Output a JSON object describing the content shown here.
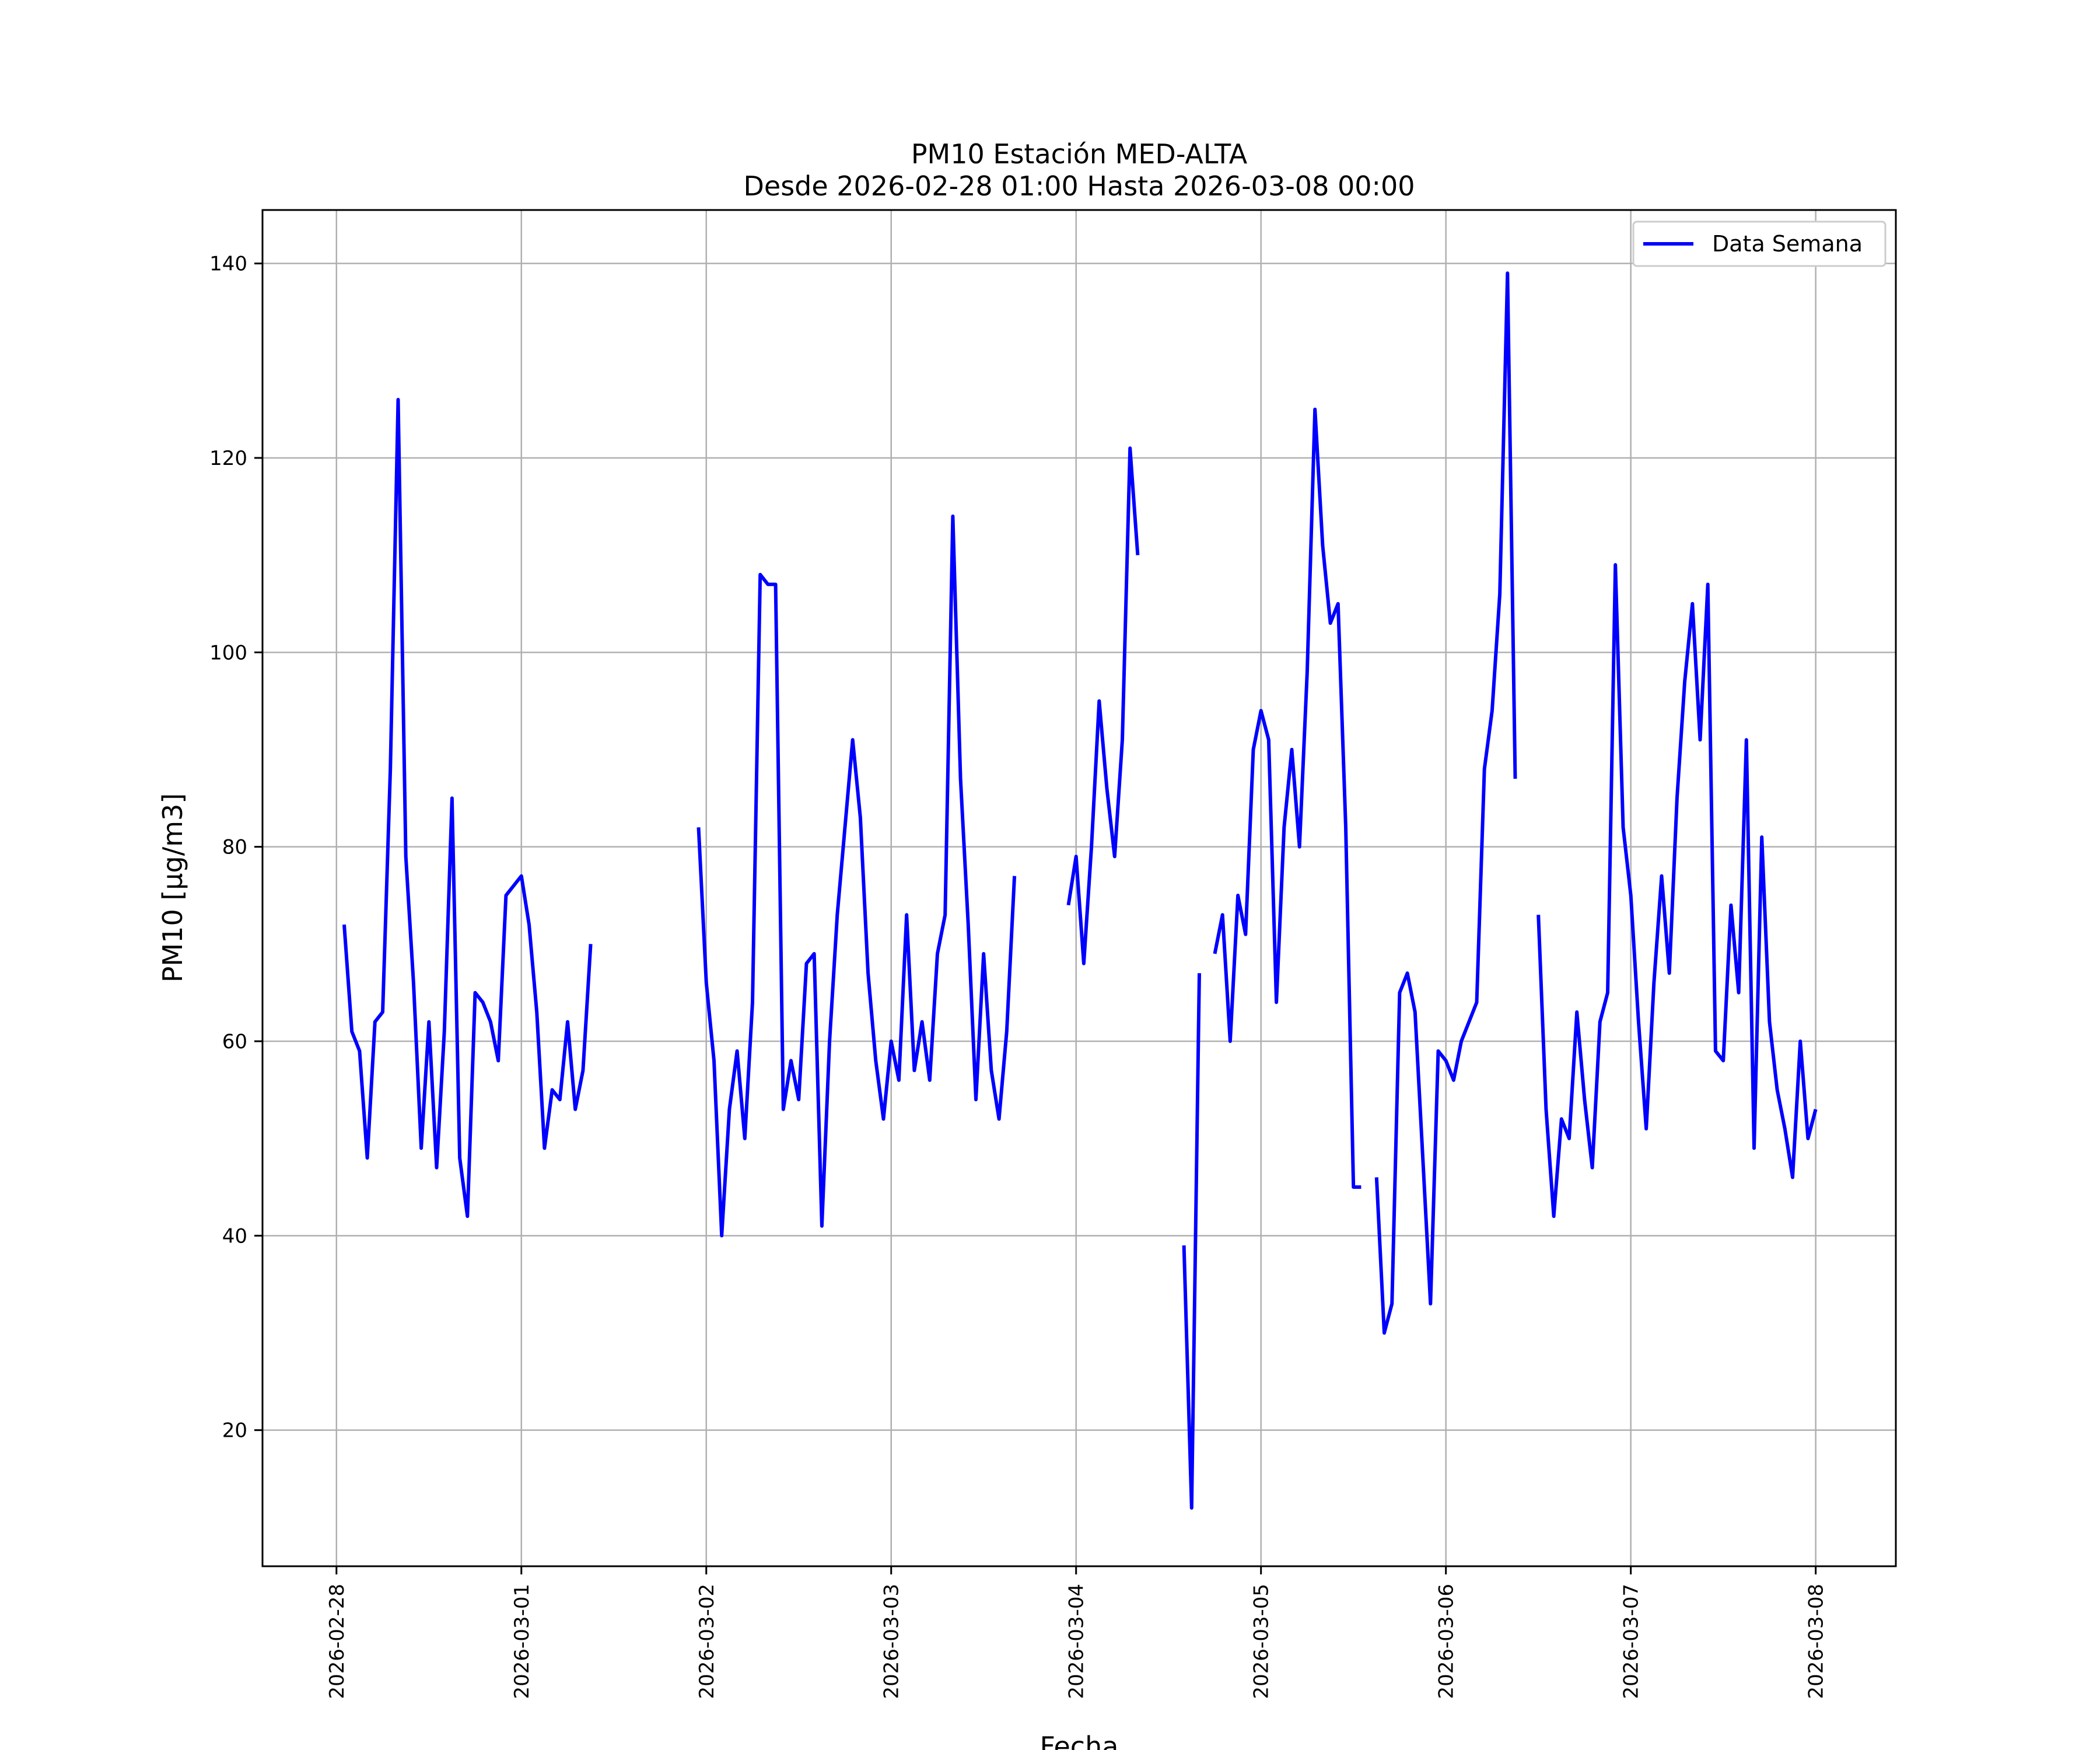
{
  "chart_data": {
    "type": "line",
    "title": "PM10 Estación MED-ALTA",
    "subtitle": "Desde 2026-02-28 01:00 Hasta 2026-03-08 00:00",
    "xlabel": "Fecha",
    "ylabel": "PM10 [μg/m3]",
    "xlim": [
      "2026-02-27T14:24",
      "2026-03-08T10:24"
    ],
    "ylim": [
      6,
      145.5
    ],
    "x_ticks": [
      "2026-02-28",
      "2026-03-01",
      "2026-03-02",
      "2026-03-03",
      "2026-03-04",
      "2026-03-05",
      "2026-03-06",
      "2026-03-07",
      "2026-03-08"
    ],
    "y_ticks": [
      20,
      40,
      60,
      80,
      100,
      120,
      140
    ],
    "grid": true,
    "legend": {
      "position": "top-right",
      "entries": [
        "Data Semana"
      ]
    },
    "series": [
      {
        "name": "Data Semana",
        "color": "#0000ff",
        "segments": [
          {
            "start": "2026-02-28T01:00",
            "values": [
              72,
              61,
              59,
              48,
              62,
              63,
              88,
              126,
              79,
              66,
              49,
              62,
              47,
              61,
              85,
              48,
              42,
              65,
              64,
              62,
              58,
              75,
              76,
              77,
              72,
              63,
              49,
              55,
              54,
              62,
              53,
              57,
              70
            ]
          },
          {
            "start": "2026-03-01T23:00",
            "values": [
              82,
              66,
              58,
              40,
              53,
              59,
              50,
              64,
              108,
              107,
              107,
              53,
              58,
              54,
              68,
              69,
              41,
              60,
              73,
              82,
              91,
              83,
              67,
              58,
              52,
              60,
              56,
              73,
              57,
              62,
              56,
              69,
              73,
              114,
              87,
              72,
              54,
              69,
              57,
              52,
              61,
              77
            ]
          },
          {
            "start": "2026-03-03T23:00",
            "values": [
              74,
              79,
              68,
              80,
              95,
              86,
              79,
              91,
              121,
              110
            ]
          },
          {
            "start": "2026-03-04T14:00",
            "values": [
              39,
              12,
              67
            ]
          },
          {
            "start": "2026-03-04T18:00",
            "values": [
              69,
              73,
              60,
              75,
              71,
              90,
              94,
              91,
              64,
              82,
              90,
              80,
              98,
              125,
              111,
              103,
              105,
              82,
              45,
              45
            ]
          },
          {
            "start": "2026-03-05T15:00",
            "values": [
              46,
              30,
              33,
              65,
              67,
              63,
              48,
              33,
              59,
              58,
              56,
              60,
              62,
              64,
              88,
              94,
              106,
              139,
              87
            ]
          },
          {
            "start": "2026-03-06T12:00",
            "values": [
              73,
              53,
              42,
              52,
              50,
              63,
              54,
              47,
              62,
              65,
              109,
              82,
              75,
              62,
              51,
              66,
              77,
              67,
              85,
              97,
              105,
              91,
              107,
              59,
              58,
              74,
              65,
              91,
              49,
              81,
              62,
              55,
              51,
              46,
              60,
              50,
              53
            ]
          }
        ]
      }
    ]
  }
}
